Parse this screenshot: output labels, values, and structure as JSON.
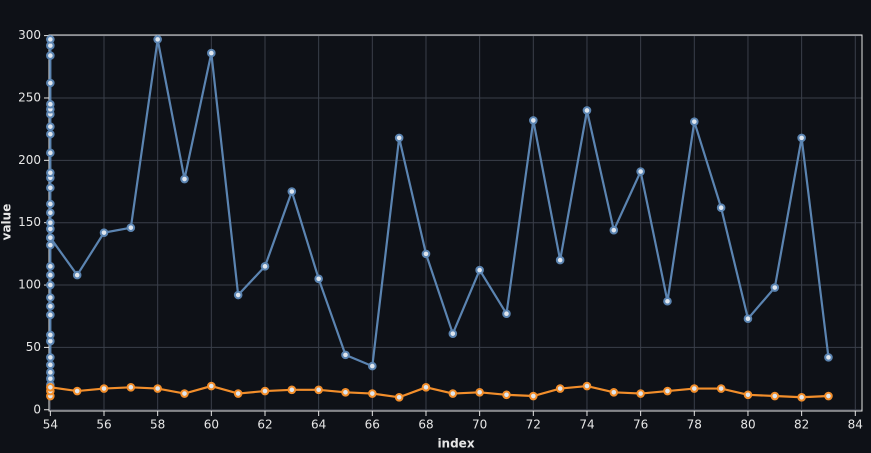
{
  "chart_data": {
    "type": "line",
    "x_label": "index",
    "y_label": "value",
    "xlim": [
      53.95,
      84.25
    ],
    "ylim": [
      -1,
      300.5
    ],
    "xticks": [
      54,
      56,
      58,
      60,
      62,
      64,
      66,
      68,
      70,
      72,
      74,
      76,
      78,
      80,
      82,
      84
    ],
    "yticks": [
      0,
      50,
      100,
      150,
      200,
      250,
      300
    ],
    "grid": true,
    "series": [
      {
        "color": "#5b84b1",
        "x": [
          54,
          54,
          54,
          54,
          54,
          54,
          54,
          54,
          54,
          54,
          54,
          54,
          54,
          54,
          54,
          54,
          54,
          54,
          54,
          54,
          54,
          54,
          54,
          54,
          54,
          54,
          54,
          54,
          54,
          54,
          54,
          54,
          54,
          55,
          56,
          57,
          58,
          59,
          60,
          61,
          62,
          63,
          64,
          65,
          66,
          67,
          68,
          69,
          70,
          71,
          72,
          73,
          74,
          75,
          76,
          77,
          78,
          79,
          80,
          81,
          82,
          83
        ],
        "values": [
          20,
          25,
          30,
          36,
          42,
          55,
          60,
          76,
          83,
          90,
          100,
          108,
          115,
          132,
          145,
          150,
          158,
          165,
          178,
          186,
          190,
          206,
          221,
          227,
          237,
          241,
          245,
          262,
          284,
          292,
          297,
          138,
          138,
          108,
          142,
          146,
          297,
          185,
          286,
          92,
          115,
          175,
          105,
          44,
          35,
          218,
          125,
          61,
          112,
          77,
          232,
          120,
          240,
          144,
          191,
          87,
          231,
          162,
          73,
          98,
          218,
          42
        ]
      },
      {
        "color": "#f28e2b",
        "x": [
          54,
          54,
          54,
          55,
          56,
          57,
          58,
          59,
          60,
          61,
          62,
          63,
          64,
          65,
          66,
          67,
          68,
          69,
          70,
          71,
          72,
          73,
          74,
          75,
          76,
          77,
          78,
          79,
          80,
          81,
          82,
          83
        ],
        "values": [
          11,
          15,
          18,
          15,
          17,
          18,
          17,
          13,
          19,
          13,
          15,
          16,
          16,
          14,
          13,
          10,
          18,
          13,
          14,
          12,
          11,
          17,
          19,
          14,
          13,
          15,
          17,
          17,
          12,
          11,
          10,
          11
        ]
      }
    ]
  }
}
